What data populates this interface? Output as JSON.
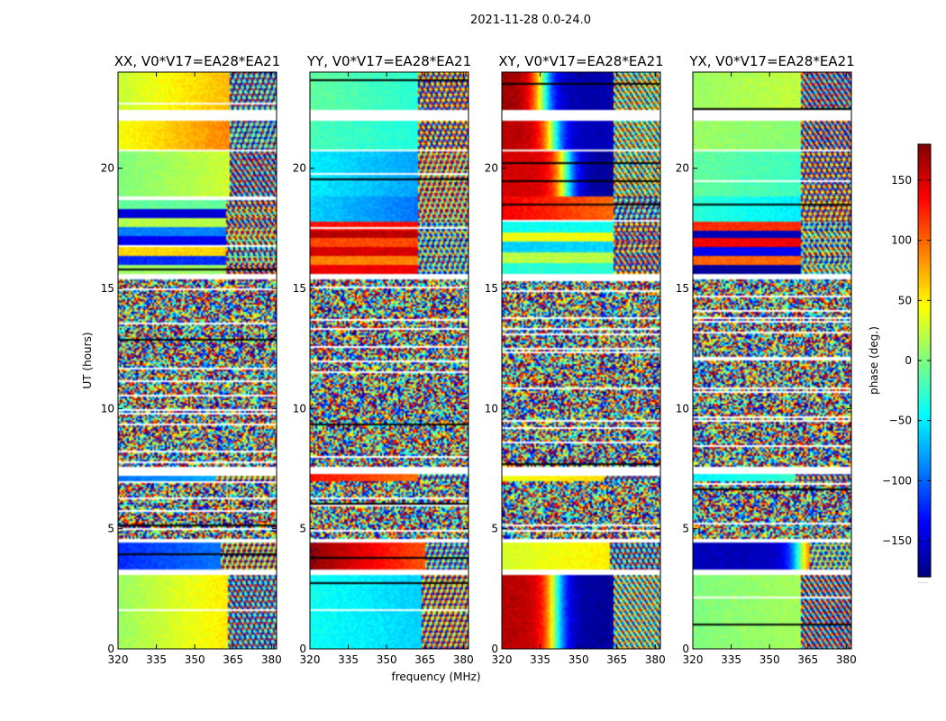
{
  "chart_data": {
    "type": "heatmap",
    "suptitle": "2021-11-28 0.0-24.0",
    "xlabel": "frequency (MHz)",
    "ylabel": "UT (hours)",
    "xlim": [
      320,
      382
    ],
    "ylim": [
      0,
      24
    ],
    "xticks": [
      320,
      335,
      350,
      365,
      380
    ],
    "yticks": [
      0,
      5,
      10,
      15,
      20
    ],
    "colorbar": {
      "label": "phase (deg.)",
      "range": [
        -180,
        180
      ],
      "ticks": [
        150,
        100,
        50,
        0,
        -50,
        -100,
        -150
      ],
      "tick_labels": [
        "150",
        "100",
        "50",
        "0",
        "−50",
        "−100",
        "−150"
      ],
      "colormap": "jet",
      "footnote": "....."
    },
    "panels": [
      {
        "title": "XX, V0*V17=EA28*EA21",
        "segments": [
          {
            "t": [
              0,
              3.05
            ],
            "kind": "smooth",
            "p0": 10,
            "p1": 70,
            "noiseFrom": 363
          },
          {
            "t": [
              3.3,
              4.45
            ],
            "kind": "smooth",
            "p0": -120,
            "p1": -80,
            "noiseFrom": 360
          },
          {
            "t": [
              4.55,
              7.0
            ],
            "kind": "noise"
          },
          {
            "t": [
              7.0,
              7.3
            ],
            "kind": "smooth",
            "p0": -95,
            "p1": -60,
            "noiseFrom": 358
          },
          {
            "t": [
              7.6,
              15.4
            ],
            "kind": "noise"
          },
          {
            "t": [
              15.6,
              18.7
            ],
            "kind": "bands",
            "bands": [
              -10,
              -150,
              20,
              -90,
              -140,
              60,
              -120,
              10
            ],
            "noiseFrom": 362
          },
          {
            "t": [
              18.8,
              20.7
            ],
            "kind": "smooth",
            "p0": 0,
            "p1": 40,
            "noiseFrom": 364
          },
          {
            "t": [
              20.8,
              22.0
            ],
            "kind": "smooth",
            "p0": 40,
            "p1": 110,
            "noiseFrom": 364
          },
          {
            "t": [
              22.4,
              24.0
            ],
            "kind": "smooth",
            "p0": 25,
            "p1": 90,
            "noiseFrom": 364
          }
        ]
      },
      {
        "title": "YY, V0*V17=EA28*EA21",
        "segments": [
          {
            "t": [
              0,
              3.05
            ],
            "kind": "smooth",
            "p0": -40,
            "p1": -70,
            "noiseFrom": 364
          },
          {
            "t": [
              3.3,
              4.45
            ],
            "kind": "smooth",
            "p0": 175,
            "p1": 80,
            "noiseFrom": 365
          },
          {
            "t": [
              4.55,
              7.0
            ],
            "kind": "noise"
          },
          {
            "t": [
              7.0,
              7.3
            ],
            "kind": "smooth",
            "p0": 130,
            "p1": 80,
            "noiseFrom": 362
          },
          {
            "t": [
              7.6,
              15.4
            ],
            "kind": "noise"
          },
          {
            "t": [
              15.6,
              17.8
            ],
            "kind": "bands",
            "bands": [
              130,
              160,
              110,
              150,
              90,
              140
            ],
            "noiseFrom": 362
          },
          {
            "t": [
              17.8,
              18.8
            ],
            "kind": "smooth",
            "p0": -60,
            "p1": -110,
            "noiseFrom": 362
          },
          {
            "t": [
              18.8,
              20.7
            ],
            "kind": "smooth",
            "p0": -50,
            "p1": -90,
            "noiseFrom": 362
          },
          {
            "t": [
              20.8,
              22.0
            ],
            "kind": "smooth",
            "p0": -20,
            "p1": -40,
            "noiseFrom": 362
          },
          {
            "t": [
              22.4,
              24.0
            ],
            "kind": "smooth",
            "p0": -10,
            "p1": -40,
            "noiseFrom": 362
          }
        ]
      },
      {
        "title": "XY, V0*V17=EA28*EA21",
        "segments": [
          {
            "t": [
              0,
              3.05
            ],
            "kind": "split",
            "p0": 160,
            "p1": -170,
            "at": 341,
            "noiseFrom": 364
          },
          {
            "t": [
              3.3,
              4.45
            ],
            "kind": "smooth",
            "p0": 30,
            "p1": 60,
            "noiseFrom": 362
          },
          {
            "t": [
              4.55,
              7.0
            ],
            "kind": "noise"
          },
          {
            "t": [
              7.0,
              7.3
            ],
            "kind": "smooth",
            "p0": 40,
            "p1": 70,
            "noiseFrom": 360
          },
          {
            "t": [
              7.6,
              15.4
            ],
            "kind": "noise"
          },
          {
            "t": [
              15.6,
              17.8
            ],
            "kind": "bands",
            "bands": [
              -40,
              40,
              -60,
              20,
              -30
            ],
            "noiseFrom": 364
          },
          {
            "t": [
              17.8,
              18.8
            ],
            "kind": "smooth",
            "p0": 140,
            "p1": 80,
            "noiseFrom": 364
          },
          {
            "t": [
              18.8,
              20.7
            ],
            "kind": "split",
            "p0": 150,
            "p1": -170,
            "at": 345,
            "noiseFrom": 364
          },
          {
            "t": [
              20.8,
              22.0
            ],
            "kind": "split",
            "p0": 160,
            "p1": -160,
            "at": 340,
            "noiseFrom": 364
          },
          {
            "t": [
              22.4,
              24.0
            ],
            "kind": "split",
            "p0": 170,
            "p1": -165,
            "at": 336,
            "noiseFrom": 364
          }
        ]
      },
      {
        "title": "YX, V0*V17=EA28*EA21",
        "segments": [
          {
            "t": [
              0,
              3.05
            ],
            "kind": "smooth",
            "p0": 0,
            "p1": 20,
            "noiseFrom": 362
          },
          {
            "t": [
              3.3,
              4.45
            ],
            "kind": "split",
            "p0": -160,
            "p1": 150,
            "at": 362,
            "noiseFrom": 366
          },
          {
            "t": [
              4.55,
              7.0
            ],
            "kind": "noise"
          },
          {
            "t": [
              7.0,
              7.3
            ],
            "kind": "smooth",
            "p0": -50,
            "p1": -10,
            "noiseFrom": 360
          },
          {
            "t": [
              7.6,
              15.4
            ],
            "kind": "noise"
          },
          {
            "t": [
              15.6,
              17.8
            ],
            "kind": "bands",
            "bands": [
              120,
              -160,
              140,
              -140,
              100,
              -170
            ],
            "noiseFrom": 362
          },
          {
            "t": [
              17.8,
              18.8
            ],
            "kind": "smooth",
            "p0": -30,
            "p1": -60,
            "noiseFrom": 362
          },
          {
            "t": [
              18.8,
              20.7
            ],
            "kind": "smooth",
            "p0": -10,
            "p1": -30,
            "noiseFrom": 362
          },
          {
            "t": [
              20.8,
              22.0
            ],
            "kind": "smooth",
            "p0": 10,
            "p1": 0,
            "noiseFrom": 362
          },
          {
            "t": [
              22.4,
              24.0
            ],
            "kind": "smooth",
            "p0": 10,
            "p1": 30,
            "noiseFrom": 362
          }
        ]
      }
    ]
  }
}
